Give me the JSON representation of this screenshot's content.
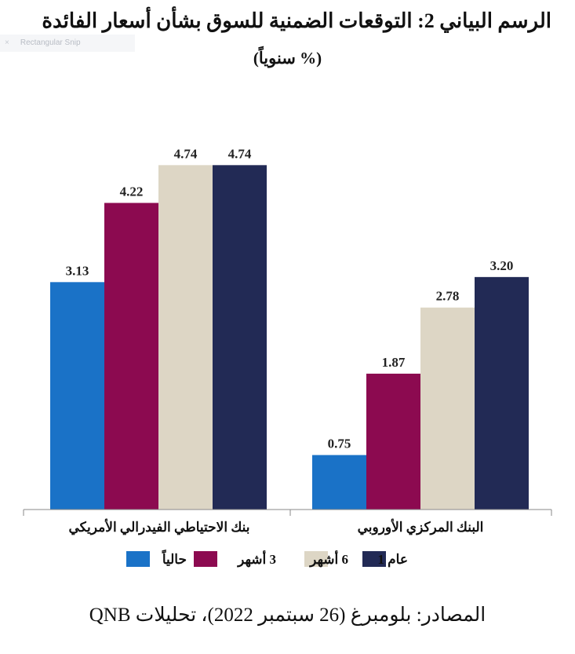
{
  "overlay": {
    "snip_label": "Rectangular Snip",
    "close_glyph": "×"
  },
  "title": "الرسم البياني 2: التوقعات الضمنية للسوق بشأن أسعار الفائدة",
  "subtitle": "(% سنوياً)",
  "source": "المصادر: بلومبرغ (26 سبتمبر 2022)، تحليلات QNB",
  "chart_data": {
    "type": "bar",
    "title": "الرسم البياني 2: التوقعات الضمنية للسوق بشأن أسعار الفائدة",
    "subtitle": "(% سنوياً)",
    "categories": [
      "بنك الاحتياطي الفيدرالي الأمريكي",
      "البنك المركزي الأوروبي"
    ],
    "series": [
      {
        "name": "حالياً",
        "values": [
          3.13,
          0.75
        ],
        "labels": [
          "3.13",
          "0.75"
        ],
        "color": "#1a72c7"
      },
      {
        "name": "3 أشهر",
        "values": [
          4.22,
          1.87
        ],
        "labels": [
          "4.22",
          "1.87"
        ],
        "color": "#8c0a50"
      },
      {
        "name": "6 أشهر",
        "values": [
          4.74,
          2.78
        ],
        "labels": [
          "4.74",
          "2.78"
        ],
        "color": "#ddd6c5"
      },
      {
        "name": "عام 1",
        "values": [
          4.74,
          3.2
        ],
        "labels": [
          "4.74",
          "3.20"
        ],
        "color": "#222a55"
      }
    ],
    "ylim": [
      0,
      5.5
    ],
    "grid": false,
    "legend_position": "bottom",
    "data_labels": true
  }
}
